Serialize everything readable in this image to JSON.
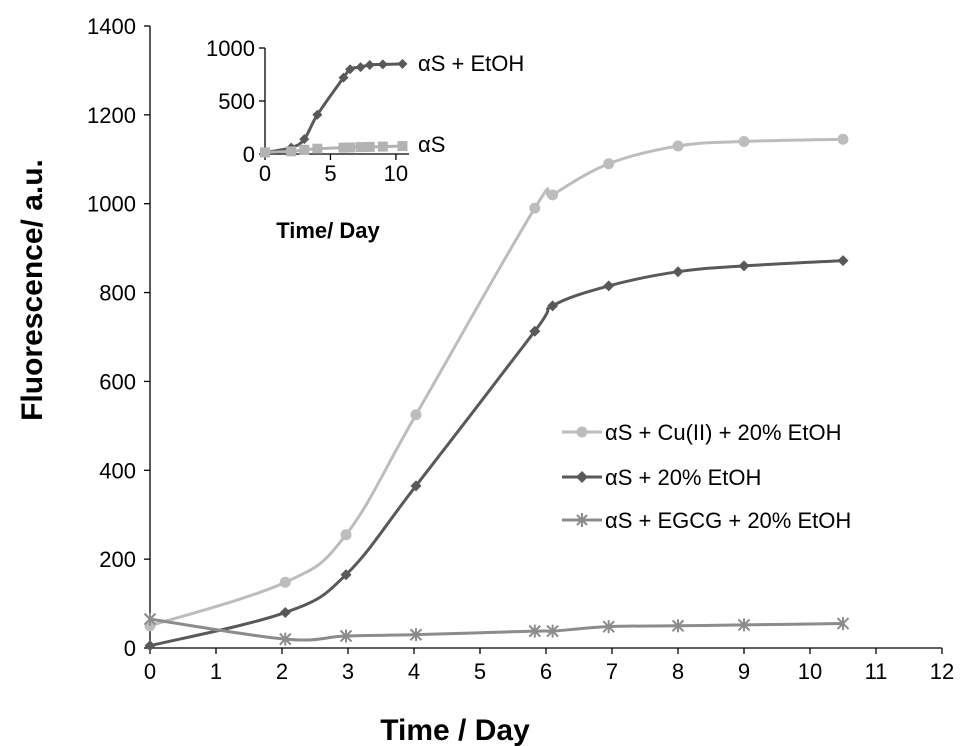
{
  "chart_data": [
    {
      "type": "line",
      "title": "",
      "xlabel": "Time / Day",
      "ylabel": "Fluorescence/ a.u.",
      "xlim": [
        0,
        12
      ],
      "ylim": [
        0,
        1400
      ],
      "x_ticks": [
        "0",
        "1",
        "2",
        "3",
        "4",
        "5",
        "6",
        "7",
        "8",
        "9",
        "10",
        "11",
        "12"
      ],
      "y_ticks": [
        "0",
        "200",
        "400",
        "600",
        "800",
        "1000",
        "1200",
        "1400"
      ],
      "grid": false,
      "legend_position": "right",
      "series": [
        {
          "name": "αS + Cu(II) + 20% EtOH",
          "color": "#bdbdbd",
          "marker": "circle",
          "x": [
            0,
            2.05,
            2.97,
            4.03,
            5.83,
            6.1,
            6.95,
            8.0,
            9.0,
            10.5
          ],
          "y": [
            50,
            148,
            255,
            525,
            990,
            1020,
            1090,
            1130,
            1140,
            1145
          ]
        },
        {
          "name": "αS + 20% EtOH",
          "color": "#595959",
          "marker": "diamond",
          "x": [
            0,
            2.05,
            2.97,
            4.03,
            5.83,
            6.1,
            6.95,
            8.0,
            9.0,
            10.5
          ],
          "y": [
            5,
            80,
            165,
            365,
            713,
            770,
            815,
            847,
            860,
            872
          ]
        },
        {
          "name": "αS + EGCG + 20% EtOH",
          "color": "#8c8c8c",
          "marker": "star",
          "x": [
            0,
            2.05,
            2.97,
            4.03,
            5.83,
            6.1,
            6.95,
            8.0,
            9.0,
            10.5
          ],
          "y": [
            65,
            20,
            27,
            30,
            38,
            38,
            48,
            50,
            52,
            55
          ]
        }
      ]
    },
    {
      "type": "line",
      "title": "",
      "xlabel": "Time/ Day",
      "ylabel": "",
      "xlim": [
        0,
        11
      ],
      "ylim": [
        0,
        1000
      ],
      "x_ticks": [
        "0",
        "5",
        "10"
      ],
      "y_ticks": [
        "0",
        "500",
        "1000"
      ],
      "grid": false,
      "series": [
        {
          "name": "αS + EtOH",
          "color": "#595959",
          "marker": "diamond",
          "x": [
            0,
            2,
            3,
            4,
            6,
            6.5,
            7.3,
            8,
            9,
            10.5
          ],
          "y": [
            15,
            60,
            140,
            370,
            720,
            800,
            820,
            840,
            845,
            850
          ]
        },
        {
          "name": "αS",
          "color": "#b3b3b3",
          "marker": "square",
          "x": [
            0,
            2,
            3,
            4,
            6,
            6.5,
            7.3,
            8,
            9,
            10.5
          ],
          "y": [
            15,
            25,
            40,
            50,
            60,
            62,
            65,
            67,
            70,
            75
          ]
        }
      ]
    }
  ]
}
